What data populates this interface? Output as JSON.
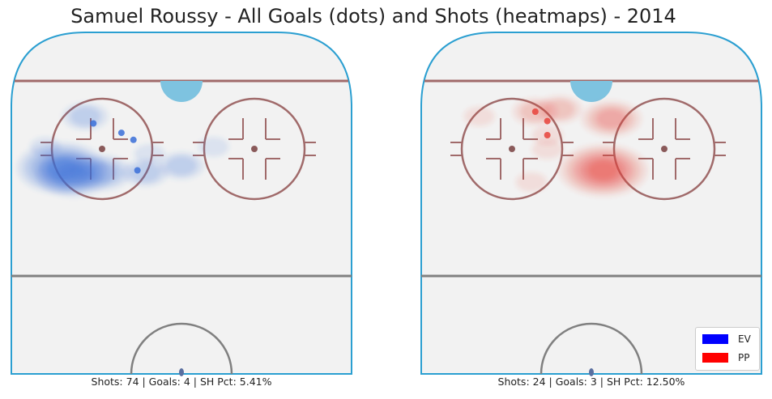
{
  "chart_data": {
    "type": "heatmap",
    "title": "Samuel Roussy - All Goals (dots) and Shots (heatmaps) - 2014",
    "panels": [
      {
        "name": "left",
        "strength": "EV",
        "color": "#3a6fd8",
        "stats": "Shots: 74 | Goals: 4 | SH Pct: 5.41%",
        "goals": [
          [
            -22,
            65
          ],
          [
            -15,
            61
          ],
          [
            -12,
            58
          ],
          [
            -11,
            45
          ]
        ],
        "shot_density": [
          {
            "x": -30,
            "y": 46,
            "level": 5
          },
          {
            "x": -27,
            "y": 43,
            "level": 4
          },
          {
            "x": -20,
            "y": 44,
            "level": 3
          },
          {
            "x": -9,
            "y": 44,
            "level": 2
          },
          {
            "x": -24,
            "y": 68,
            "level": 2
          },
          {
            "x": -8,
            "y": 52,
            "level": 1
          },
          {
            "x": 0,
            "y": 47,
            "level": 2
          },
          {
            "x": 8,
            "y": 55,
            "level": 1
          },
          {
            "x": -34,
            "y": 55,
            "level": 1
          }
        ]
      },
      {
        "name": "right",
        "strength": "PP",
        "color": "#e8423a",
        "stats": "Shots: 24 | Goals: 3 | SH Pct: 12.50%",
        "goals": [
          [
            -14,
            70
          ],
          [
            -11,
            66
          ],
          [
            -11,
            60
          ]
        ],
        "shot_density": [
          {
            "x": 3,
            "y": 45,
            "level": 5
          },
          {
            "x": 5,
            "y": 67,
            "level": 3
          },
          {
            "x": -8,
            "y": 71,
            "level": 2
          },
          {
            "x": -14,
            "y": 70,
            "level": 2
          },
          {
            "x": -11,
            "y": 60,
            "level": 1
          },
          {
            "x": -11,
            "y": 54,
            "level": 1
          },
          {
            "x": -28,
            "y": 68,
            "level": 1
          },
          {
            "x": -15,
            "y": 40,
            "level": 1
          }
        ]
      }
    ],
    "legend": {
      "position": "bottom-right",
      "entries": [
        {
          "label": "EV",
          "color": "#0000ff"
        },
        {
          "label": "PP",
          "color": "#ff0000"
        }
      ]
    }
  }
}
